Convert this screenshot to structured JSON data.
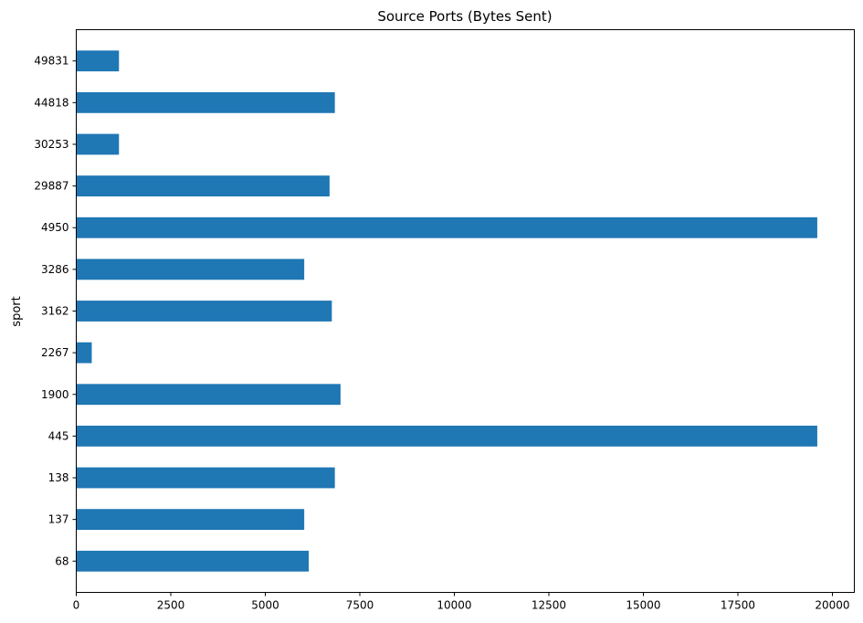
{
  "chart_data": {
    "type": "bar",
    "orientation": "horizontal",
    "title": "Source Ports (Bytes Sent)",
    "xlabel": "",
    "ylabel": "sport",
    "categories": [
      "68",
      "137",
      "138",
      "445",
      "1900",
      "2267",
      "3162",
      "3286",
      "4950",
      "29887",
      "30253",
      "44818",
      "49831"
    ],
    "values": [
      6150,
      6030,
      6840,
      19600,
      6990,
      410,
      6760,
      6030,
      19600,
      6700,
      1130,
      6840,
      1130
    ],
    "xlim": [
      0,
      20580
    ],
    "xticks": [
      0,
      2500,
      5000,
      7500,
      10000,
      12500,
      15000,
      17500,
      20000
    ],
    "bar_color": "#1f77b4",
    "grid": false,
    "legend": "none"
  }
}
